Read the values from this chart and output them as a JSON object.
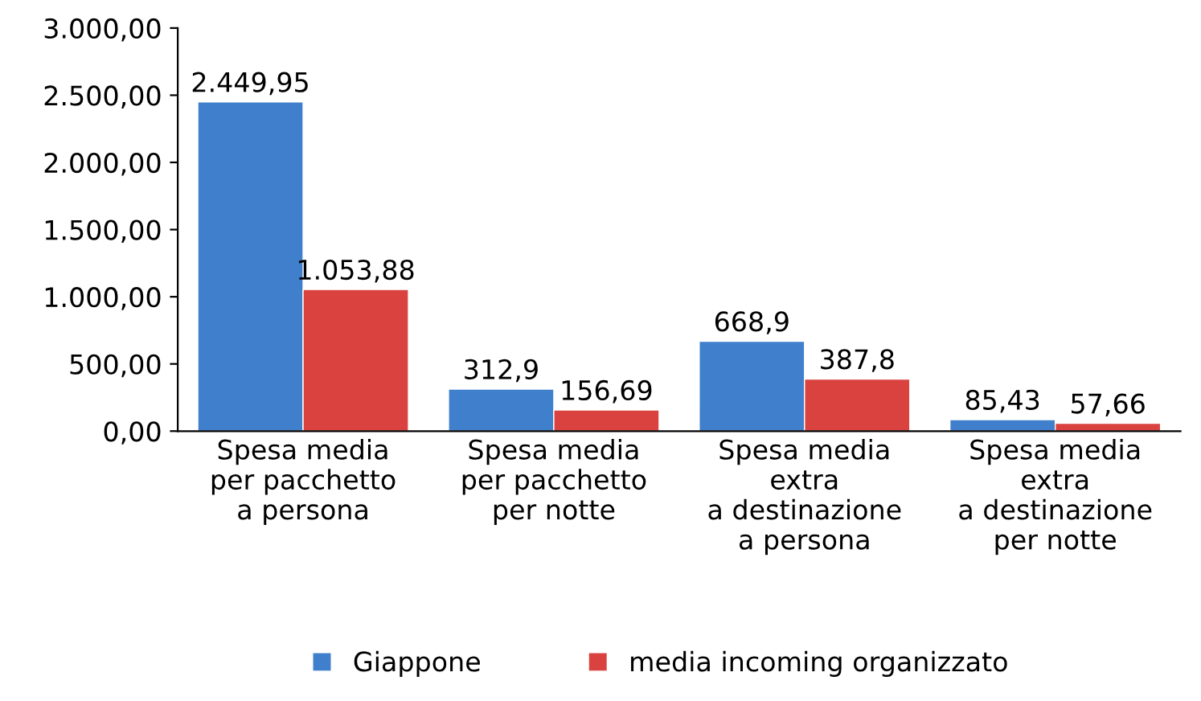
{
  "chart_data": {
    "type": "bar",
    "categories": [
      "Spesa media\nper pacchetto\na persona",
      "Spesa media\nper pacchetto\nper notte",
      "Spesa media\nextra\na destinazione\na persona",
      "Spesa media\nextra\na destinazione\nper notte"
    ],
    "series": [
      {
        "name": "Giappone",
        "color": "#3f7fcc",
        "values": [
          2449.95,
          312.9,
          668.9,
          85.43
        ],
        "value_labels": [
          "2.449,95",
          "312,9",
          "668,9",
          "85,43"
        ]
      },
      {
        "name": "media incoming organizzato",
        "color": "#d9423f",
        "values": [
          1053.88,
          156.69,
          387.8,
          57.66
        ],
        "value_labels": [
          "1.053,88",
          "156,69",
          "387,8",
          "57,66"
        ]
      }
    ],
    "ylim": [
      0,
      3000
    ],
    "yticks": [
      {
        "value": 0,
        "label": "0,00"
      },
      {
        "value": 500,
        "label": "500,00"
      },
      {
        "value": 1000,
        "label": "1.000,00"
      },
      {
        "value": 1500,
        "label": "1.500,00"
      },
      {
        "value": 2000,
        "label": "2.000,00"
      },
      {
        "value": 2500,
        "label": "2.500,00"
      },
      {
        "value": 3000,
        "label": "3.000,00"
      }
    ],
    "grid": false,
    "legend": "bottom"
  }
}
